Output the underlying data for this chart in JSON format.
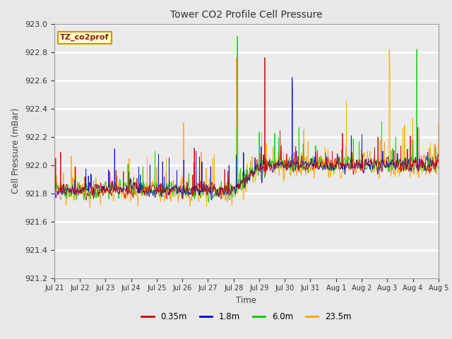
{
  "title": "Tower CO2 Profile Cell Pressure",
  "ylabel": "Cell Pressure (mBar)",
  "xlabel": "Time",
  "annotation": "TZ_co2prof",
  "ylim": [
    921.2,
    923.0
  ],
  "yticks": [
    921.2,
    921.4,
    921.6,
    921.8,
    922.0,
    922.2,
    922.4,
    922.6,
    922.8,
    923.0
  ],
  "xtick_labels": [
    "Jul 21",
    "Jul 22",
    "Jul 23",
    "Jul 24",
    "Jul 25",
    "Jul 26",
    "Jul 27",
    "Jul 28",
    "Jul 29",
    "Jul 30",
    "Jul 31",
    "Aug 1",
    "Aug 2",
    "Aug 3",
    "Aug 4",
    "Aug 5"
  ],
  "series_colors": [
    "#cc0000",
    "#0000cc",
    "#00cc00",
    "#ffa500"
  ],
  "series_labels": [
    "0.35m",
    "1.8m",
    "6.0m",
    "23.5m"
  ],
  "bg_color": "#e8e8e8",
  "plot_bg_color": "#ebebeb",
  "grid_color": "#ffffff",
  "n_days": 15,
  "seed": 12345,
  "figwidth": 6.4,
  "figheight": 4.8,
  "dpi": 100
}
